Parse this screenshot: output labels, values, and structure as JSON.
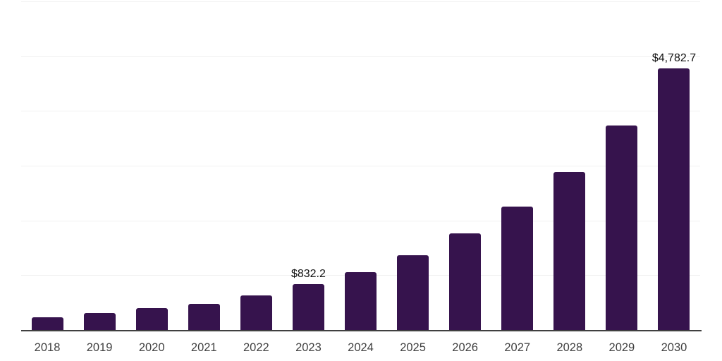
{
  "chart_data": {
    "type": "bar",
    "title": "",
    "xlabel": "",
    "ylabel": "",
    "categories": [
      "2018",
      "2019",
      "2020",
      "2021",
      "2022",
      "2023",
      "2024",
      "2025",
      "2026",
      "2027",
      "2028",
      "2029",
      "2030"
    ],
    "values": [
      230,
      305,
      398,
      480,
      630,
      832.2,
      1050,
      1360,
      1760,
      2250,
      2890,
      3730,
      4782.7
    ],
    "data_labels": [
      "",
      "",
      "",
      "",
      "",
      "$832.2",
      "",
      "",
      "",
      "",
      "",
      "",
      "$4,782.7"
    ],
    "ylim": [
      0,
      6000
    ],
    "grid_interval": 1000,
    "grid_visible": true,
    "y_tick_labels_visible": false,
    "legend": "none",
    "colors": {
      "bar": "#36134d",
      "grid": "#f0f0f0",
      "axis_line": "#404040",
      "tick_label": "#404040",
      "data_label": "#111111",
      "background": "#ffffff"
    }
  }
}
